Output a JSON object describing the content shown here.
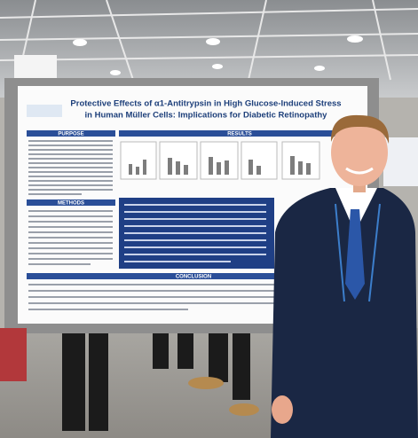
{
  "poster": {
    "title_lines": [
      "Protective Effects of α1-Antitrypsin in High Glucose-Induced Stress",
      "in Human Müller Cells: Implications for Diabetic Retinopathy"
    ],
    "sections": [
      "PURPOSE",
      "METHODS",
      "RESULTS",
      "CONCLUSION"
    ]
  }
}
